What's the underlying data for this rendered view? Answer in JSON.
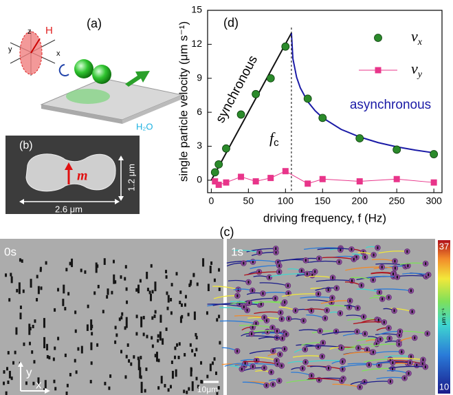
{
  "chart_data": {
    "type": "scatter",
    "panel_label": "(d)",
    "x_label": "driving frequency, f (Hz)",
    "y_label": "single particle velocity (μm s⁻¹)",
    "xlim": [
      -5,
      311
    ],
    "ylim": [
      -1.1,
      15
    ],
    "xticks": [
      0,
      50,
      100,
      150,
      200,
      250,
      300
    ],
    "yticks": [
      0,
      3,
      6,
      9,
      12,
      15
    ],
    "series": [
      {
        "name": "v",
        "name_sub": "x",
        "color": "#2b8a2b",
        "marker": "circle",
        "line": false,
        "x": [
          5,
          10,
          20,
          40,
          60,
          80,
          100,
          130,
          150,
          200,
          250,
          300
        ],
        "values": [
          0.7,
          1.4,
          2.8,
          5.8,
          7.6,
          9.0,
          11.8,
          7.2,
          5.5,
          3.7,
          2.7,
          2.3
        ]
      },
      {
        "name": "v",
        "name_sub": "y",
        "color": "#e8358a",
        "marker": "square",
        "line": true,
        "x": [
          5,
          10,
          20,
          40,
          60,
          80,
          100,
          130,
          150,
          200,
          250,
          300
        ],
        "values": [
          -0.1,
          -0.4,
          -0.2,
          0.3,
          -0.1,
          0.2,
          0.8,
          -0.3,
          0.1,
          -0.1,
          0.1,
          -0.2
        ]
      }
    ],
    "fits": [
      {
        "color": "#111111",
        "x": [
          0,
          108
        ],
        "values": [
          0,
          13
        ]
      },
      {
        "color": "#1a1aa6",
        "x": [
          108,
          110,
          115,
          120,
          130,
          140,
          150,
          175,
          200,
          225,
          250,
          275,
          300
        ],
        "values": [
          13,
          10.73,
          9.09,
          8.15,
          6.94,
          6.13,
          5.52,
          4.49,
          3.82,
          3.32,
          2.95,
          2.66,
          2.42
        ]
      }
    ],
    "annotations": {
      "synchronous": "synchronous",
      "asynchronous": "asynchronous",
      "asynchronous_color": "#1a1aa6",
      "critical": "f",
      "critical_sub": "c",
      "critical_x": 108
    }
  },
  "panel_a": {
    "label": "(a)",
    "axis_z": "z",
    "axis_y": "y",
    "axis_x": "x",
    "field": "H",
    "medium": "H₂O"
  },
  "panel_b": {
    "label": "(b)",
    "moment": "m",
    "height": "1.2 μm",
    "width": "2.6 μm"
  },
  "panel_c": {
    "label": "(c)",
    "frames": [
      "0s",
      "1s"
    ],
    "axis_y": "y",
    "axis_x": "x",
    "scale_bar": "10μm",
    "colorbar": {
      "max": 37,
      "min": 10,
      "unit": "μm s⁻¹"
    }
  }
}
